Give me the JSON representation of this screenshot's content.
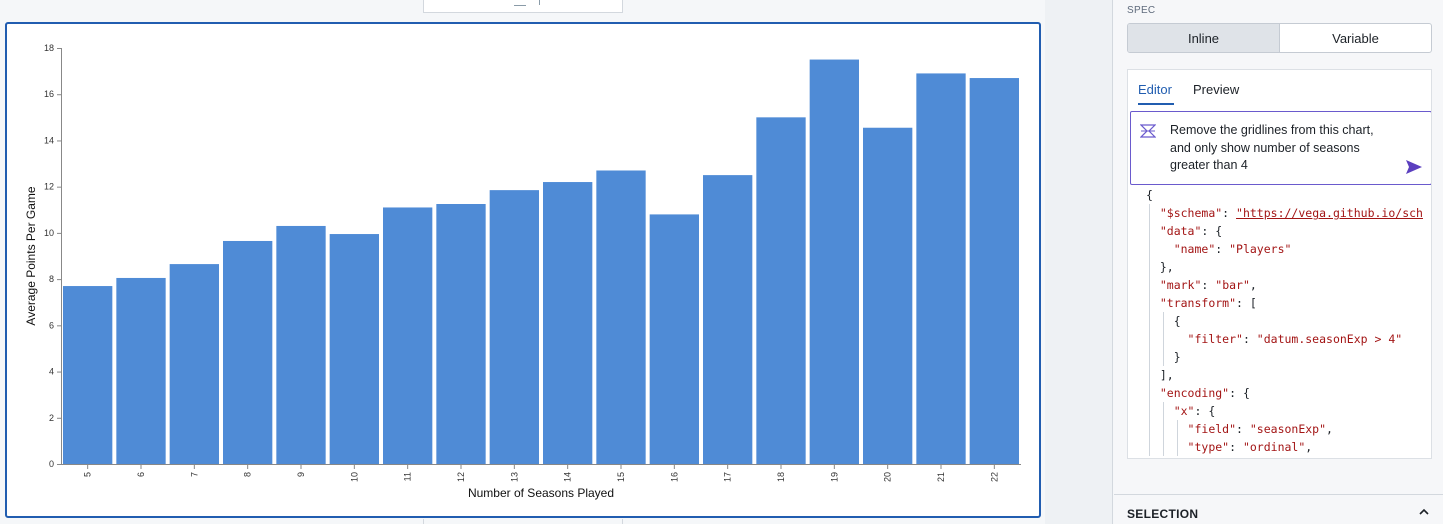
{
  "right_panel": {
    "spec_label": "SPEC",
    "mode_toggle": {
      "inline_label": "Inline",
      "variable_label": "Variable",
      "selected": "Inline"
    },
    "tabs": {
      "editor_label": "Editor",
      "preview_label": "Preview",
      "active": "Editor"
    },
    "prompt": {
      "icon": "ai-sparkle-icon",
      "lines": [
        "Remove the gridlines from this chart,",
        "and only show number of seasons",
        "greater than 4"
      ],
      "send_icon": "send-arrow-icon"
    },
    "code_lines": [
      "{",
      "  \"$schema\": \"https://vega.github.io/sch",
      "  \"data\": {",
      "    \"name\": \"Players\"",
      "  },",
      "  \"mark\": \"bar\",",
      "  \"transform\": [",
      "    {",
      "      \"filter\": \"datum.seasonExp > 4\"",
      "    }",
      "  ],",
      "  \"encoding\": {",
      "    \"x\": {",
      "      \"field\": \"seasonExp\",",
      "      \"type\": \"ordinal\","
    ],
    "selection_label": "SELECTION",
    "selection_icon": "chevron-up-icon"
  },
  "chart_data": {
    "type": "bar",
    "categories": [
      "5",
      "6",
      "7",
      "8",
      "9",
      "10",
      "11",
      "12",
      "13",
      "14",
      "15",
      "16",
      "17",
      "18",
      "19",
      "20",
      "21",
      "22"
    ],
    "values": [
      7.7,
      8.05,
      8.65,
      9.65,
      10.3,
      9.95,
      11.1,
      11.25,
      11.85,
      12.2,
      12.7,
      10.8,
      12.5,
      15.0,
      17.5,
      14.55,
      16.9,
      16.7
    ],
    "xlabel": "Number of Seasons Played",
    "ylabel": "Average Points Per Game",
    "ylim": [
      0,
      18
    ],
    "yticks": [
      "0",
      "2",
      "4",
      "6",
      "8",
      "10",
      "12",
      "14",
      "16",
      "18"
    ],
    "grid": false,
    "bar_color": "#4f8bd6"
  },
  "colors": {
    "accent": "#215db0",
    "prompt_border": "#6a5acd",
    "send": "#5b3fbf"
  }
}
